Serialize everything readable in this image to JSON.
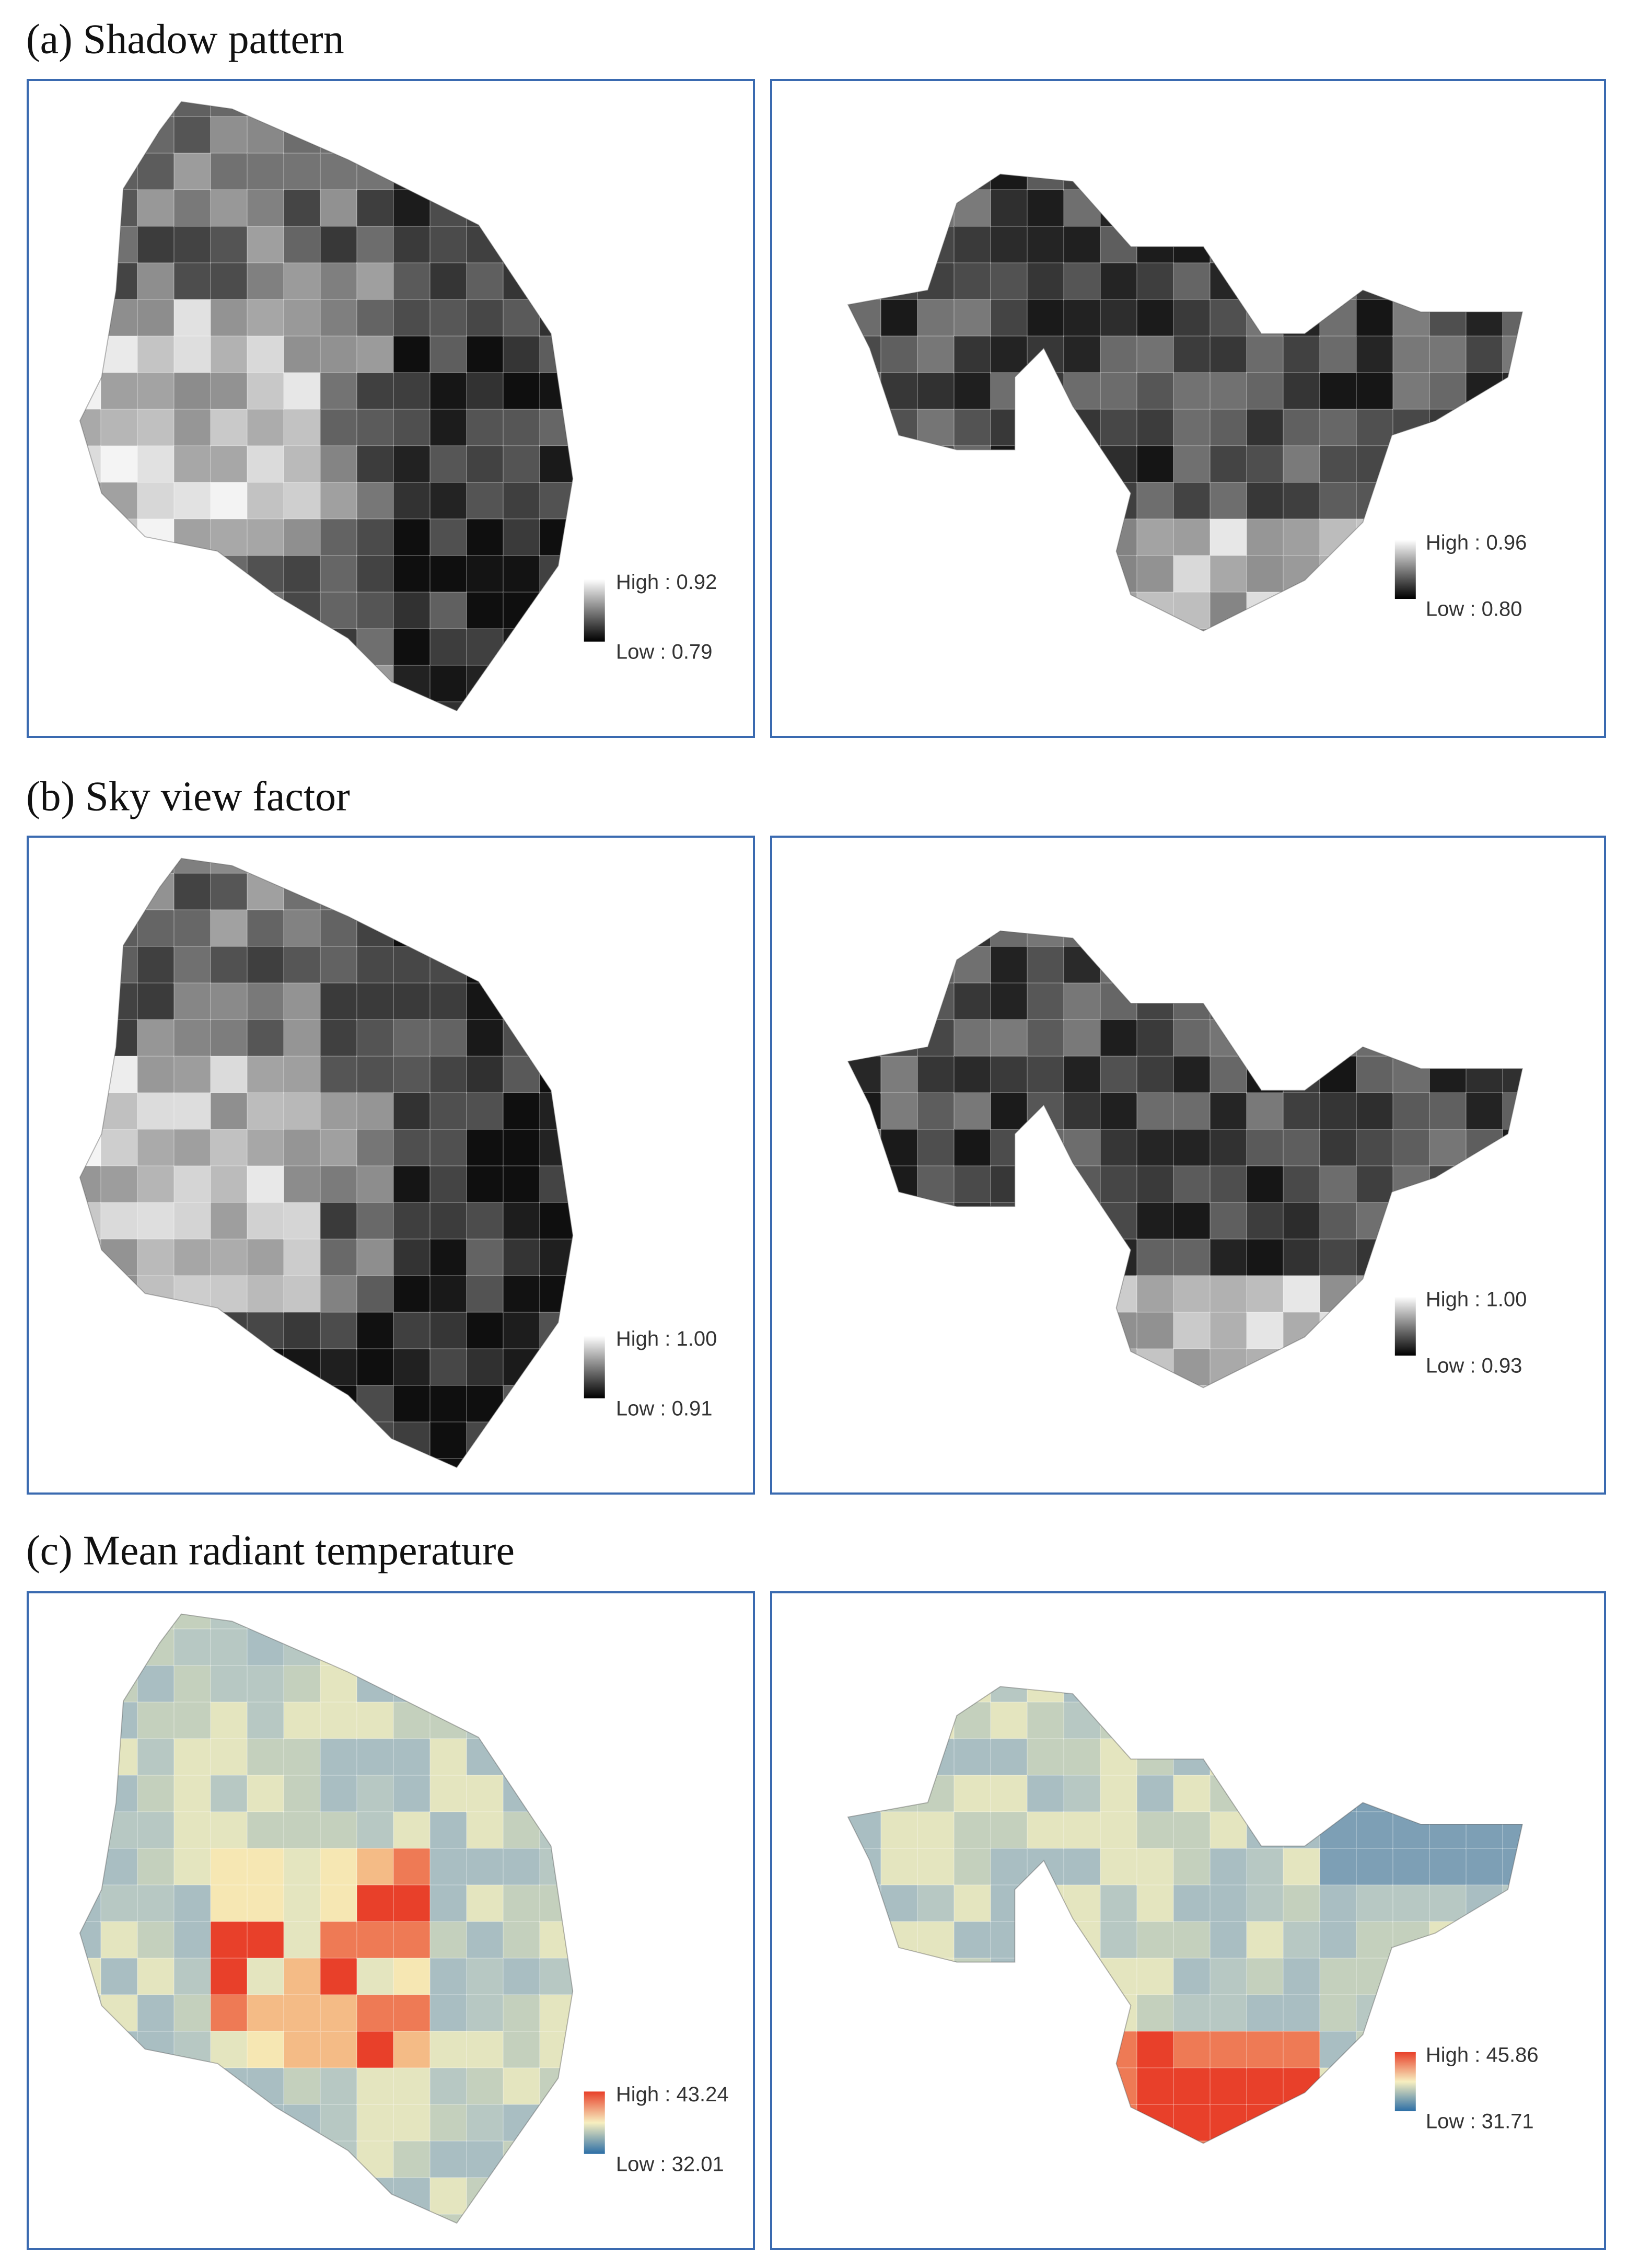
{
  "panels": [
    {
      "title": "(a) Shadow pattern",
      "maps": [
        {
          "legend_high": "High : 0.92",
          "legend_low": "Low : 0.79"
        },
        {
          "legend_high": "High : 0.96",
          "legend_low": "Low : 0.80"
        }
      ]
    },
    {
      "title": "(b) Sky view factor",
      "maps": [
        {
          "legend_high": "High : 1.00",
          "legend_low": "Low : 0.91"
        },
        {
          "legend_high": "High : 1.00",
          "legend_low": "Low : 0.93"
        }
      ]
    },
    {
      "title": "(c) Mean radiant temperature",
      "maps": [
        {
          "legend_high": "High : 43.24",
          "legend_low": "Low : 32.01"
        },
        {
          "legend_high": "High : 45.86",
          "legend_low": "Low : 31.71"
        }
      ]
    }
  ]
}
